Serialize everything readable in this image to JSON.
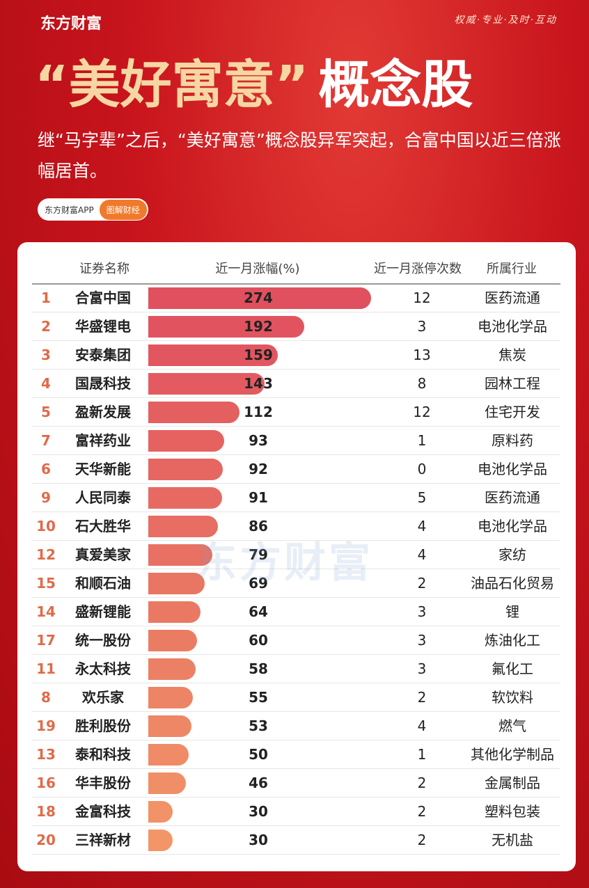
{
  "header": {
    "brand": "东方财富",
    "slogan": "权威·专业·及时·互动",
    "title_quote": "“美好寓意”",
    "title_main": "概念股",
    "subtitle": "继“马字辈”之后，“美好寓意”概念股异军突起，合富中国以近三倍涨幅居首。",
    "badge_app": "东方财富APP",
    "badge_tag": "图解财经"
  },
  "watermark": "东方财富",
  "table": {
    "columns": [
      "证券名称",
      "近一月涨幅(%)",
      "近一月涨停次数",
      "所属行业"
    ],
    "rows": [
      [
        1,
        "合富中国",
        274,
        12,
        "医药流通"
      ],
      [
        2,
        "华盛锂电",
        192,
        3,
        "电池化学品"
      ],
      [
        3,
        "安泰集团",
        159,
        13,
        "焦炭"
      ],
      [
        4,
        "国晟科技",
        143,
        8,
        "园林工程"
      ],
      [
        5,
        "盈新发展",
        112,
        12,
        "住宅开发"
      ],
      [
        7,
        "富祥药业",
        93,
        1,
        "原料药"
      ],
      [
        6,
        "天华新能",
        92,
        0,
        "电池化学品"
      ],
      [
        9,
        "人民同泰",
        91,
        5,
        "医药流通"
      ],
      [
        10,
        "石大胜华",
        86,
        4,
        "电池化学品"
      ],
      [
        12,
        "真爱美家",
        79,
        4,
        "家纺"
      ],
      [
        15,
        "和顺石油",
        69,
        2,
        "油品石化贸易"
      ],
      [
        14,
        "盛新锂能",
        64,
        3,
        "锂"
      ],
      [
        17,
        "统一股份",
        60,
        3,
        "炼油化工"
      ],
      [
        11,
        "永太科技",
        58,
        3,
        "氟化工"
      ],
      [
        8,
        "欢乐家",
        55,
        2,
        "软饮料"
      ],
      [
        19,
        "胜利股份",
        53,
        4,
        "燃气"
      ],
      [
        13,
        "泰和科技",
        50,
        1,
        "其他化学制品"
      ],
      [
        16,
        "华丰股份",
        46,
        2,
        "金属制品"
      ],
      [
        18,
        "金富科技",
        30,
        2,
        "塑料包装"
      ],
      [
        20,
        "三祥新材",
        30,
        2,
        "无机盐"
      ]
    ]
  }
}
